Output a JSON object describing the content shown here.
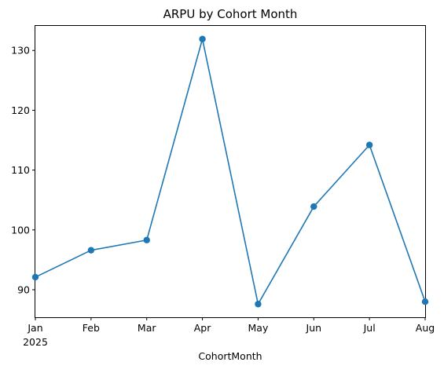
{
  "chart_data": {
    "type": "line",
    "title": "ARPU by Cohort Month",
    "xlabel": "CohortMonth",
    "ylabel": "",
    "categories": [
      "Jan",
      "Feb",
      "Mar",
      "Apr",
      "May",
      "Jun",
      "Jul",
      "Aug"
    ],
    "year_label": "2025",
    "series": [
      {
        "values": [
          92.1,
          96.6,
          98.3,
          131.9,
          87.6,
          103.9,
          114.2,
          88.0
        ]
      }
    ],
    "y_ticks": [
      90,
      100,
      110,
      120,
      130
    ],
    "ylim": [
      85.4,
      134.1
    ],
    "grid": false,
    "legend": false,
    "line_color": "#1f77b4",
    "marker": "circle"
  }
}
